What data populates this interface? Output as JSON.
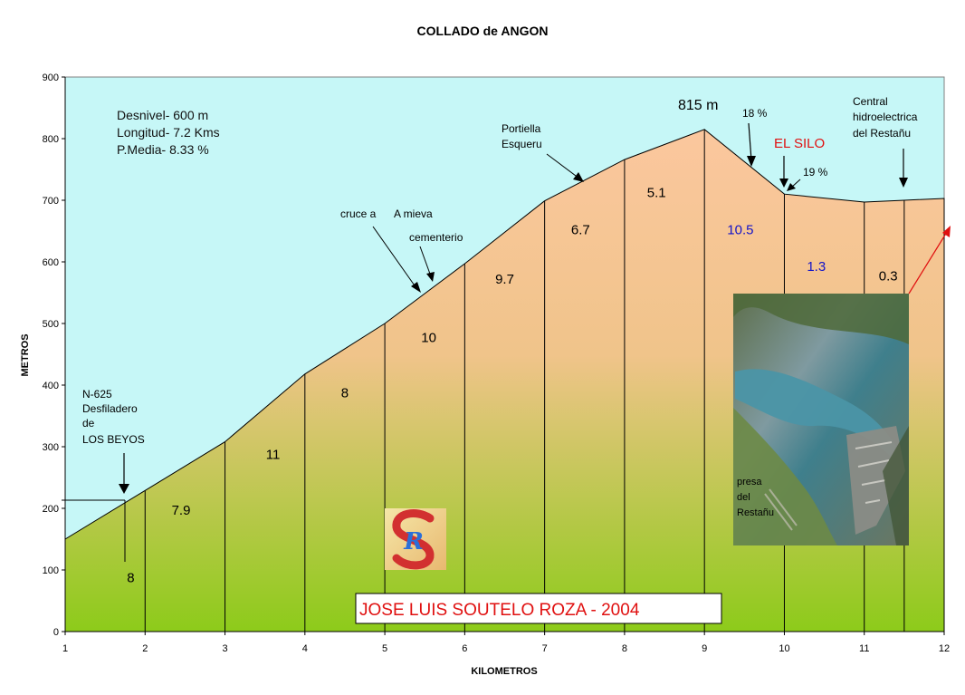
{
  "chart_data": {
    "type": "area",
    "title": "COLLADO de ANGON",
    "xlabel": "KILOMETROS",
    "ylabel": "METROS",
    "xlim": [
      1,
      12
    ],
    "ylim": [
      0,
      900
    ],
    "x_ticks": [
      "1",
      "2",
      "3",
      "4",
      "5",
      "6",
      "7",
      "8",
      "9",
      "10",
      "11",
      "12"
    ],
    "y_ticks": [
      "0",
      "100",
      "200",
      "300",
      "400",
      "500",
      "600",
      "700",
      "800",
      "900"
    ],
    "grid": false,
    "legend": "none",
    "profile": [
      {
        "x": 1,
        "y": 150
      },
      {
        "x": 2,
        "y": 229
      },
      {
        "x": 3,
        "y": 308
      },
      {
        "x": 4,
        "y": 418
      },
      {
        "x": 5,
        "y": 500
      },
      {
        "x": 6,
        "y": 597
      },
      {
        "x": 7,
        "y": 699
      },
      {
        "x": 8,
        "y": 766
      },
      {
        "x": 9,
        "y": 815
      },
      {
        "x": 10,
        "y": 710
      },
      {
        "x": 11,
        "y": 697
      },
      {
        "x": 11.5,
        "y": 700
      },
      {
        "x": 12,
        "y": 703
      }
    ],
    "segment_lines_x": [
      2,
      3,
      4,
      5,
      6,
      7,
      8,
      9,
      10,
      11,
      11.5
    ],
    "segment_gradients": [
      {
        "label": "8",
        "x": 1.82,
        "y": 80,
        "color": "#000000"
      },
      {
        "label": "7.9",
        "x": 2.45,
        "y": 190,
        "color": "#000000"
      },
      {
        "label": "11",
        "x": 3.6,
        "y": 280,
        "color": "#000000"
      },
      {
        "label": "8",
        "x": 4.5,
        "y": 380,
        "color": "#000000"
      },
      {
        "label": "10",
        "x": 5.55,
        "y": 470,
        "color": "#000000"
      },
      {
        "label": "9.7",
        "x": 6.5,
        "y": 565,
        "color": "#000000"
      },
      {
        "label": "6.7",
        "x": 7.45,
        "y": 645,
        "color": "#000000"
      },
      {
        "label": "5.1",
        "x": 8.4,
        "y": 705,
        "color": "#000000"
      },
      {
        "label": "10.5",
        "x": 9.45,
        "y": 645,
        "color": "#1414c8"
      },
      {
        "label": "1.3",
        "x": 10.4,
        "y": 585,
        "color": "#1414c8"
      },
      {
        "label": "0.3",
        "x": 11.3,
        "y": 570,
        "color": "#000000"
      }
    ],
    "stats_lines": [
      "Desnivel- 600 m",
      "Longitud- 7.2 Kms",
      "P.Media- 8.33 %"
    ],
    "annotations": {
      "start_lines": [
        "N-625",
        "Desfiladero",
        "de",
        "LOS BEYOS"
      ],
      "cruce": "cruce a",
      "mieva": "A mieva",
      "cementerio": "cementerio",
      "portiella_lines": [
        "Portiella",
        "Esqueru"
      ],
      "summit": "815 m",
      "pct18": "18 %",
      "silo": "EL SILO",
      "pct19": "19 %",
      "central_lines": [
        "Central",
        "hidroelectrica",
        "del Restañu"
      ],
      "photo_caption_lines": [
        "presa",
        "del",
        "Restañu"
      ]
    },
    "credit": "JOSE LUIS SOUTELO ROZA - 2004",
    "logo_text": "R"
  },
  "colors": {
    "sky": "#c6f7f7",
    "ground_top": "#fbc79e",
    "ground_bottom": "#8dcb1a",
    "blue_label": "#1414c8",
    "red_label": "#e01010"
  }
}
